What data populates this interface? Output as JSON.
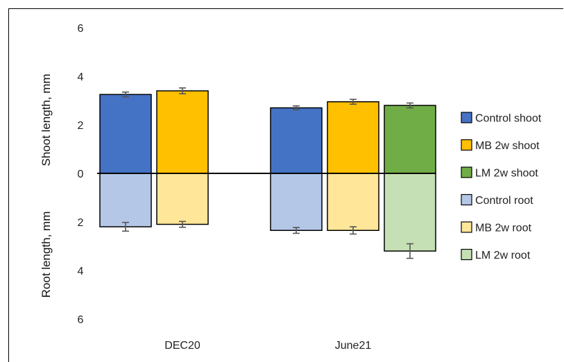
{
  "chart_data": {
    "type": "bar",
    "categories": [
      "DEC20",
      "June21"
    ],
    "ylabel_top": "Shoot length, mm",
    "ylabel_bottom": "Root length, mm",
    "yticks": [
      "6",
      "4",
      "2",
      "0",
      "2",
      "4",
      "6"
    ],
    "ylim": [
      -6,
      6
    ],
    "grid": false,
    "legend_position": "right",
    "series": [
      {
        "name": "Control shoot",
        "part": "shoot",
        "color": "#4472C4",
        "values": [
          3.25,
          2.7
        ],
        "errors": [
          0.1,
          0.08
        ]
      },
      {
        "name": "MB 2w shoot",
        "part": "shoot",
        "color": "#FFC000",
        "values": [
          3.4,
          2.95
        ],
        "errors": [
          0.12,
          0.1
        ]
      },
      {
        "name": "LM 2w shoot",
        "part": "shoot",
        "color": "#70AD47",
        "values": [
          null,
          2.8
        ],
        "errors": [
          null,
          0.1
        ]
      },
      {
        "name": "Control root",
        "part": "root",
        "color": "#B4C7E7",
        "values": [
          2.2,
          2.35
        ],
        "errors": [
          0.18,
          0.12
        ]
      },
      {
        "name": "MB 2w root",
        "part": "root",
        "color": "#FFE699",
        "values": [
          2.1,
          2.35
        ],
        "errors": [
          0.12,
          0.15
        ]
      },
      {
        "name": "LM 2w root",
        "part": "root",
        "color": "#C5E0B4",
        "values": [
          null,
          3.2
        ],
        "errors": [
          null,
          0.3
        ]
      }
    ]
  }
}
